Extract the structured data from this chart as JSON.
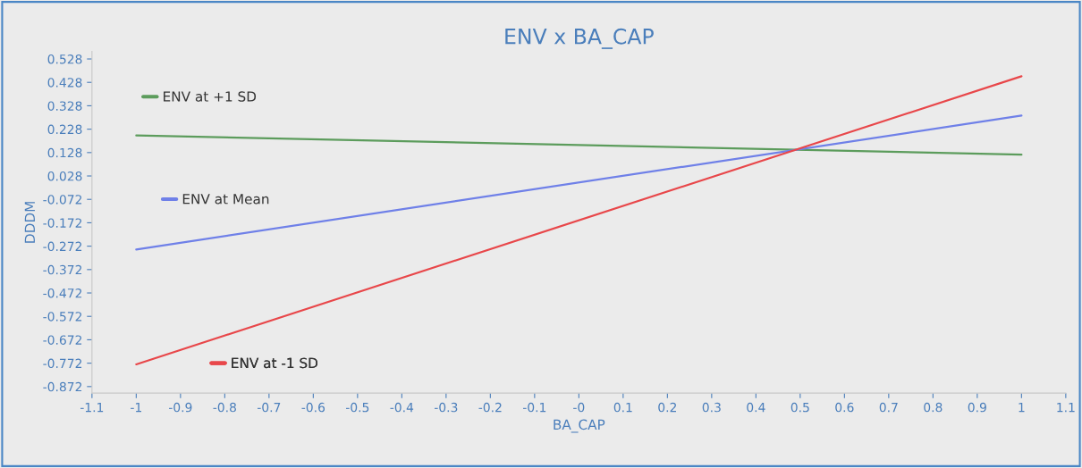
{
  "chart_data": {
    "type": "line",
    "title": "ENV x BA_CAP",
    "xlabel": "BA_CAP",
    "ylabel": "DDDM",
    "x": [
      -1,
      1
    ],
    "series": [
      {
        "name": "ENV at +1 SD",
        "color": "#5c9c5c",
        "values": [
          0.201,
          0.119
        ]
      },
      {
        "name": "ENV at Mean",
        "color": "#6f80e8",
        "values": [
          -0.286,
          0.286
        ]
      },
      {
        "name": "ENV at -1 SD",
        "color": "#e8474a",
        "values": [
          -0.777,
          0.454
        ]
      }
    ],
    "xlim": [
      -1.1,
      1.1
    ],
    "xticks": [
      -1.1,
      -1,
      -0.9,
      -0.8,
      -0.7,
      -0.6,
      -0.5,
      -0.4,
      -0.3,
      -0.2,
      -0.1,
      {
        "value": 0,
        "label": "-0"
      },
      0.1,
      0.2,
      0.3,
      0.4,
      0.5,
      0.6,
      0.7,
      0.8,
      0.9,
      1,
      1.1
    ],
    "ylim": [
      -0.9,
      0.56
    ],
    "yticks": [
      -0.872,
      -0.772,
      -0.672,
      -0.572,
      -0.472,
      -0.372,
      -0.272,
      -0.172,
      -0.072,
      0.028,
      0.128,
      0.228,
      0.328,
      0.428,
      0.528
    ],
    "grid": false,
    "legend": "left",
    "marker": "none",
    "line_style": "solid"
  }
}
